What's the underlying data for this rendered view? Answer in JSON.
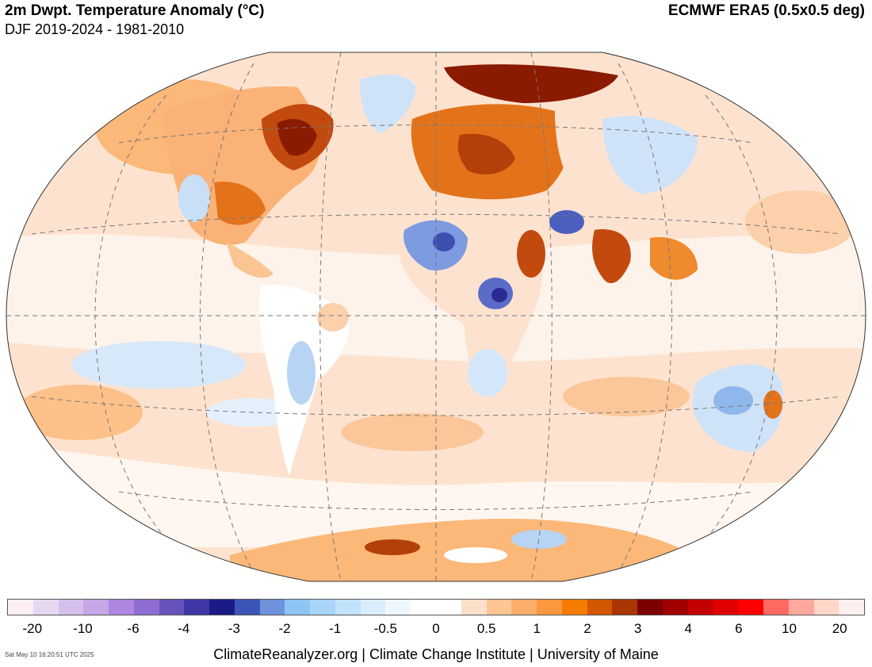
{
  "header": {
    "title": "2m Dwpt. Temperature Anomaly (°C)",
    "subtitle": "DJF 2019-2024 - 1981-2010",
    "source": "ECMWF ERA5 (0.5x0.5 deg)"
  },
  "map": {
    "projection": "Winkel Tripel",
    "graticule": "dashed",
    "ocean_color": "#fdeadb",
    "land_fill_default": "#fbd2a9"
  },
  "legend": {
    "colors": [
      "#fdeef3",
      "#e6d8f0",
      "#d4c0ea",
      "#c5a7e5",
      "#ad87df",
      "#8e6dd3",
      "#6753bd",
      "#3f37a6",
      "#1a1b86",
      "#3c56b7",
      "#6c93dc",
      "#8fc5f5",
      "#a9d5f8",
      "#c2e2fb",
      "#d9edfd",
      "#eef7ff",
      "#ffffff",
      "#ffffff",
      "#fde0c9",
      "#fcc593",
      "#fbae6a",
      "#fa973f",
      "#f57c00",
      "#d15700",
      "#a93500",
      "#7c0000",
      "#a00000",
      "#c20000",
      "#e00000",
      "#ff0000",
      "#ff6a60",
      "#ffa99e",
      "#ffd6c8",
      "#fff0f0"
    ],
    "tick_labels": [
      "-20",
      "-10",
      "-6",
      "-4",
      "-3",
      "-2",
      "-1",
      "-0.5",
      "0",
      "0.5",
      "1",
      "2",
      "3",
      "4",
      "6",
      "10",
      "20"
    ]
  },
  "footer": {
    "credit": "ClimateReanalyzer.org | Climate Change Institute | University of Maine",
    "timestamp": "Sat May 10 16:20:51 UTC 2025"
  }
}
